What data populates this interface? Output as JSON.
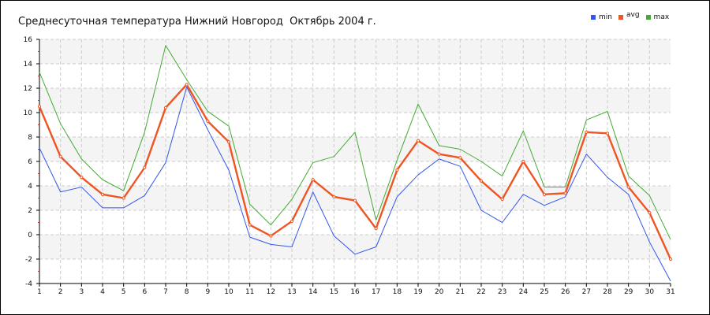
{
  "chart_data": {
    "type": "line",
    "title": "Среднесуточная температура Нижний Новгород  Октябрь 2004 г.",
    "xlabel": "",
    "ylabel": "",
    "x": [
      1,
      2,
      3,
      4,
      5,
      6,
      7,
      8,
      9,
      10,
      11,
      12,
      13,
      14,
      15,
      16,
      17,
      18,
      19,
      20,
      21,
      22,
      23,
      24,
      25,
      26,
      27,
      28,
      29,
      30,
      31
    ],
    "xlim": [
      1,
      31
    ],
    "ylim": [
      -4,
      16
    ],
    "yticks": [
      -4,
      -2,
      0,
      2,
      4,
      6,
      8,
      10,
      12,
      14,
      16
    ],
    "grid": true,
    "legend_position": "top-right",
    "series": [
      {
        "name": "min",
        "color": "#3355ee",
        "values": [
          7.1,
          3.5,
          3.9,
          2.2,
          2.2,
          3.2,
          5.9,
          12.1,
          8.6,
          5.3,
          -0.2,
          -0.8,
          -1.0,
          3.5,
          -0.1,
          -1.6,
          -1.0,
          3.1,
          4.9,
          6.2,
          5.6,
          2.0,
          1.0,
          3.3,
          2.4,
          3.1,
          6.6,
          4.7,
          3.3,
          -0.6,
          -3.8
        ]
      },
      {
        "name": "avg",
        "color": "#ee5522",
        "values": [
          10.5,
          6.4,
          4.7,
          3.3,
          3.0,
          5.5,
          10.4,
          12.3,
          9.3,
          7.6,
          0.8,
          -0.1,
          1.1,
          4.5,
          3.1,
          2.8,
          0.5,
          5.3,
          7.7,
          6.6,
          6.3,
          4.4,
          2.9,
          6.0,
          3.3,
          3.4,
          8.4,
          8.3,
          3.9,
          1.8,
          -2.0
        ]
      },
      {
        "name": "max",
        "color": "#44aa33",
        "values": [
          13.3,
          9.1,
          6.2,
          4.5,
          3.6,
          8.4,
          15.5,
          12.7,
          10.1,
          8.9,
          2.5,
          0.8,
          2.9,
          5.9,
          6.4,
          8.4,
          1.2,
          6.1,
          10.7,
          7.3,
          7.0,
          6.0,
          4.8,
          8.5,
          3.9,
          3.9,
          9.4,
          10.1,
          4.8,
          3.2,
          -0.4
        ]
      }
    ]
  }
}
